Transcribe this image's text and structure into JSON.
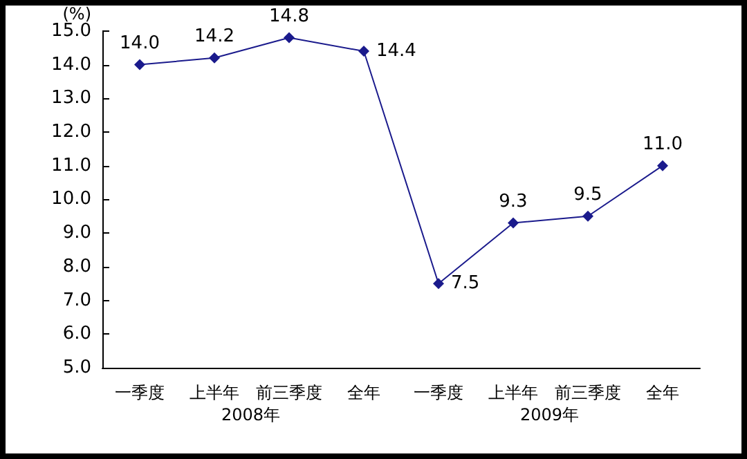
{
  "chart_data": {
    "type": "line",
    "ylabel": "(%)",
    "categories": [
      "一季度",
      "上半年",
      "前三季度",
      "全年",
      "一季度",
      "上半年",
      "前三季度",
      "全年"
    ],
    "series": [
      {
        "color": "#1a1a8c",
        "values": [
          14.0,
          14.2,
          14.8,
          14.4,
          7.5,
          9.3,
          9.5,
          11.0
        ]
      }
    ],
    "ylim": [
      5,
      15
    ],
    "yticks": [
      {
        "value": 5,
        "label": "5.0"
      },
      {
        "value": 6,
        "label": "6.0"
      },
      {
        "value": 7,
        "label": "7.0"
      },
      {
        "value": 8,
        "label": "8.0"
      },
      {
        "value": 9,
        "label": "9.0"
      },
      {
        "value": 10,
        "label": "10.0"
      },
      {
        "value": 11,
        "label": "11.0"
      },
      {
        "value": 12,
        "label": "12.0"
      },
      {
        "value": 13,
        "label": "13.0"
      },
      {
        "value": 14,
        "label": "14.0"
      },
      {
        "value": 15,
        "label": "15.0"
      }
    ],
    "value_labels": [
      [
        "14.0",
        "14.2",
        "14.8",
        "14.4",
        "7.5",
        "9.3",
        "9.5",
        "11.0"
      ]
    ],
    "annotations": [
      "2008年",
      "2009年"
    ],
    "grid": false,
    "marker": "diamond",
    "line_style": "solid"
  }
}
